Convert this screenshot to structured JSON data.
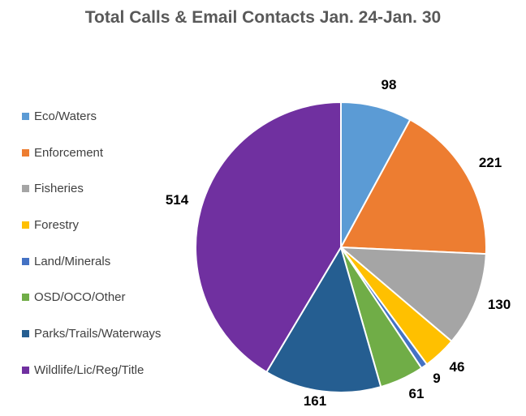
{
  "chart_data": {
    "type": "pie",
    "title": "Total Calls & Email Contacts Jan. 24-Jan. 30",
    "legend_position": "left",
    "slices": [
      {
        "label": "Eco/Waters",
        "value": 98,
        "color": "#5B9BD5"
      },
      {
        "label": "Enforcement",
        "value": 221,
        "color": "#ED7D31"
      },
      {
        "label": "Fisheries",
        "value": 130,
        "color": "#A5A5A5"
      },
      {
        "label": "Forestry",
        "value": 46,
        "color": "#FFC000"
      },
      {
        "label": "Land/Minerals",
        "value": 9,
        "color": "#4472C4"
      },
      {
        "label": "OSD/OCO/Other",
        "value": 61,
        "color": "#70AD47"
      },
      {
        "label": "Parks/Trails/Waterways",
        "value": 161,
        "color": "#255E91"
      },
      {
        "label": "Wildlife/Lic/Reg/Title",
        "value": 514,
        "color": "#7030A0"
      }
    ]
  }
}
